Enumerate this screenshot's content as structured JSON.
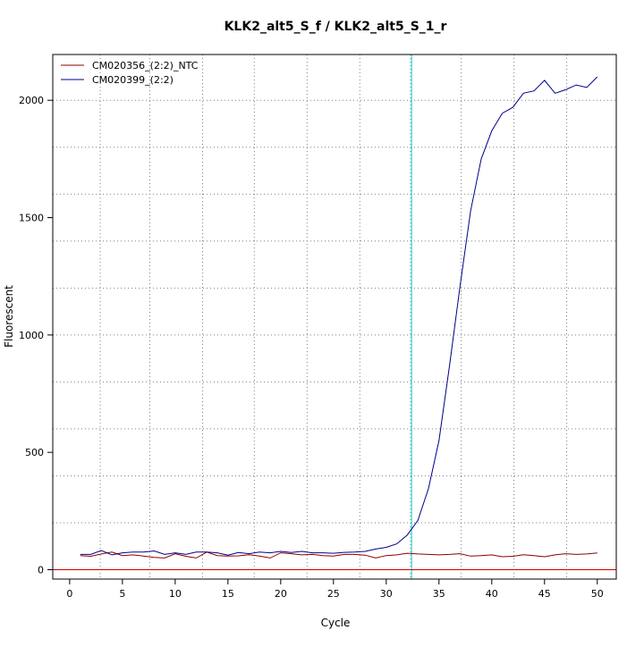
{
  "chart_data": {
    "type": "line",
    "title": "KLK2_alt5_S_f / KLK2_alt5_S_1_r",
    "xlabel": "Cycle",
    "ylabel": "Fluorescent",
    "xlim": [
      -1.6,
      51.8
    ],
    "ylim": [
      -40,
      2195
    ],
    "x_ticks": [
      0,
      5,
      10,
      15,
      20,
      25,
      30,
      35,
      40,
      45,
      50
    ],
    "y_ticks": [
      0,
      500,
      1000,
      1500,
      2000
    ],
    "x_tick_labels": [
      "0",
      "5",
      "10",
      "15",
      "20",
      "25",
      "30",
      "35",
      "40",
      "45",
      "50"
    ],
    "y_tick_labels": [
      "0",
      "500",
      "1000",
      "1500",
      "2000"
    ],
    "x_grid": [
      2.9,
      7.6,
      12.6,
      17.5,
      22.5,
      27.5,
      32.3,
      37.1,
      42.1,
      47.1
    ],
    "y_grid": [
      0,
      200,
      400,
      600,
      800,
      1000,
      1200,
      1400,
      1600,
      1800,
      2000
    ],
    "grid": true,
    "grid_style": "dotted",
    "threshold_x": 32.4,
    "threshold_color": "#00cccc",
    "baseline_y": 0,
    "baseline_color": "#cc0000",
    "legend_position": "top-left",
    "x": [
      1,
      2,
      3,
      4,
      5,
      6,
      7,
      8,
      9,
      10,
      11,
      12,
      13,
      14,
      15,
      16,
      17,
      18,
      19,
      20,
      21,
      22,
      23,
      24,
      25,
      26,
      27,
      28,
      29,
      30,
      31,
      32,
      33,
      34,
      35,
      36,
      37,
      38,
      39,
      40,
      41,
      42,
      43,
      44,
      45,
      46,
      47,
      48,
      49,
      50
    ],
    "series": [
      {
        "name": "CM020356_(2:2)_NTC",
        "color": "#8b0000",
        "values": [
          60,
          57,
          67,
          75,
          60,
          63,
          58,
          52,
          50,
          68,
          57,
          50,
          75,
          60,
          58,
          59,
          64,
          58,
          50,
          72,
          68,
          63,
          65,
          60,
          58,
          65,
          65,
          62,
          50,
          60,
          63,
          70,
          67,
          65,
          63,
          65,
          68,
          58,
          60,
          63,
          55,
          57,
          64,
          60,
          55,
          63,
          68,
          65,
          67,
          71
        ]
      },
      {
        "name": "CM020399_(2:2)",
        "color": "#00008b",
        "values": [
          65,
          65,
          82,
          63,
          72,
          75,
          75,
          80,
          65,
          72,
          65,
          75,
          75,
          72,
          62,
          73,
          68,
          75,
          72,
          78,
          73,
          78,
          72,
          72,
          70,
          74,
          75,
          78,
          88,
          95,
          110,
          148,
          210,
          345,
          550,
          870,
          1210,
          1530,
          1750,
          1870,
          1945,
          1970,
          2030,
          2040,
          2085,
          2030,
          2045,
          2065,
          2055,
          2100
        ]
      }
    ]
  }
}
